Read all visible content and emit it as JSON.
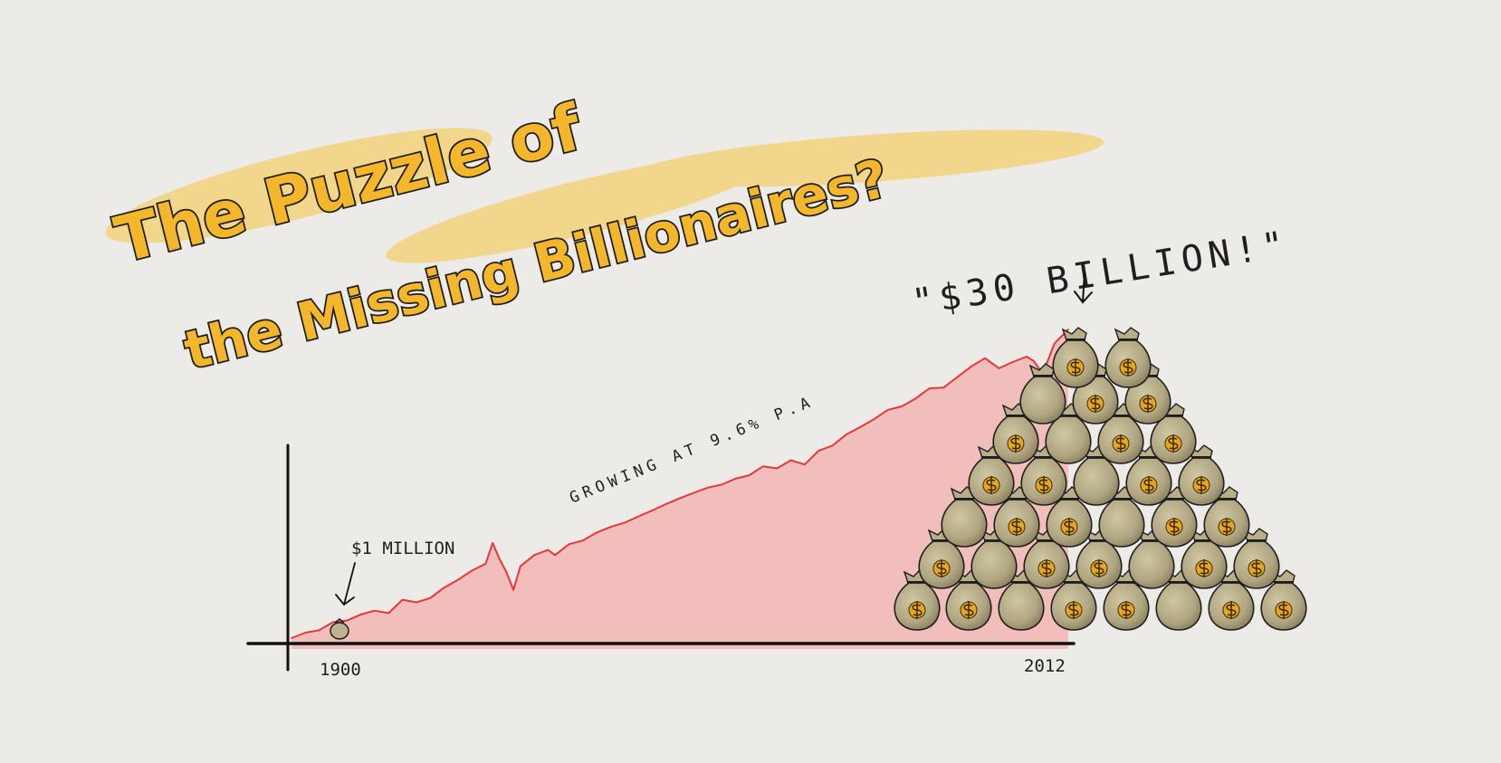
{
  "title": {
    "line1": "The Puzzle of",
    "line2": "the Missing Billionaires?"
  },
  "colors": {
    "background": "#ecebe7",
    "title_fill": "#f4b62a",
    "title_highlight": "#f7c640",
    "line": "#e8373a",
    "area": "#f3b9b6",
    "axis": "#111111",
    "bag": "#b5ab86",
    "bag_shadow": "#8f8566",
    "dollar": "#e8a51e"
  },
  "chart_data": {
    "type": "area",
    "x_start_label": "1900",
    "x_end_label": "2012",
    "xlim": [
      1900,
      2012
    ],
    "y_scale": "log",
    "annotations": {
      "start": "$1 MILLION",
      "growth": "GROWING AT 9.6% P.A",
      "end": "\"$30 BILLION!\""
    },
    "series": [
      {
        "x": [
          1900,
          1902,
          1904,
          1906,
          1908,
          1910,
          1912,
          1914,
          1916,
          1918,
          1920,
          1922,
          1924,
          1926,
          1928,
          1929,
          1930,
          1931,
          1932,
          1933,
          1935,
          1937,
          1938,
          1940,
          1942,
          1944,
          1946,
          1948,
          1950,
          1952,
          1954,
          1956,
          1958,
          1960,
          1962,
          1964,
          1966,
          1968,
          1970,
          1972,
          1974,
          1976,
          1978,
          1980,
          1982,
          1984,
          1986,
          1988,
          1990,
          1992,
          1994,
          1996,
          1998,
          2000,
          2002,
          2004,
          2006,
          2007,
          2008,
          2009,
          2010,
          2012
        ],
        "y": [
          1,
          1.2,
          1.3,
          1.7,
          1.8,
          2.2,
          2.5,
          2.3,
          3.6,
          3.3,
          3.8,
          5.4,
          7,
          9.5,
          12,
          24,
          14,
          9,
          5,
          11,
          16,
          19,
          16,
          23,
          26,
          34,
          41,
          47,
          58,
          71,
          88,
          107,
          128,
          152,
          168,
          205,
          230,
          310,
          290,
          380,
          330,
          520,
          620,
          900,
          1150,
          1500,
          2050,
          2300,
          3000,
          4200,
          4300,
          6100,
          8700,
          11500,
          8200,
          10100,
          12100,
          10500,
          7600,
          10200,
          18700,
          30000
        ]
      }
    ]
  }
}
